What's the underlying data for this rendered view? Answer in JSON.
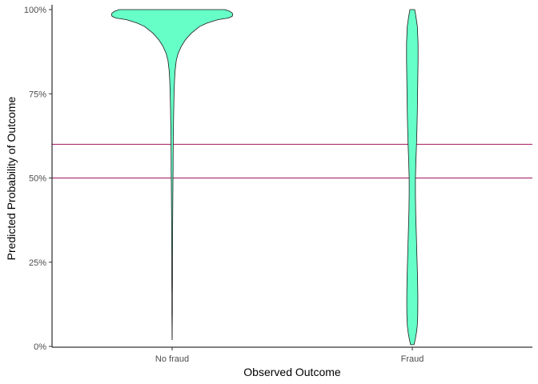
{
  "colors": {
    "violin_fill": "#66FFC8",
    "violin_stroke": "#1a1a1a",
    "reference_line": "#A0175E"
  },
  "chart_data": {
    "type": "violin",
    "title": "",
    "xlabel": "Observed Outcome",
    "ylabel": "Predicted Probability of Outcome",
    "categories": [
      "No fraud",
      "Fraud"
    ],
    "ylim": [
      0,
      1
    ],
    "y_ticks": [
      {
        "value": 0,
        "label": "0%"
      },
      {
        "value": 0.25,
        "label": "25%"
      },
      {
        "value": 0.5,
        "label": "50%"
      },
      {
        "value": 0.75,
        "label": "75%"
      },
      {
        "value": 1,
        "label": "100%"
      }
    ],
    "reference_lines": [
      0.5,
      0.6
    ],
    "grid": false,
    "violins": [
      {
        "category": "No fraud",
        "y_range": [
          0.02,
          1.0
        ],
        "density_profile": [
          [
            1.0,
            0.44
          ],
          [
            0.995,
            0.48
          ],
          [
            0.99,
            0.5
          ],
          [
            0.985,
            0.505
          ],
          [
            0.98,
            0.5
          ],
          [
            0.975,
            0.47
          ],
          [
            0.97,
            0.38
          ],
          [
            0.96,
            0.29
          ],
          [
            0.95,
            0.23
          ],
          [
            0.93,
            0.16
          ],
          [
            0.91,
            0.11
          ],
          [
            0.89,
            0.075
          ],
          [
            0.87,
            0.05
          ],
          [
            0.85,
            0.035
          ],
          [
            0.82,
            0.025
          ],
          [
            0.79,
            0.02
          ],
          [
            0.75,
            0.016
          ],
          [
            0.7,
            0.013
          ],
          [
            0.65,
            0.011
          ],
          [
            0.6,
            0.009
          ],
          [
            0.55,
            0.008
          ],
          [
            0.52,
            0.008
          ],
          [
            0.5,
            0.007
          ],
          [
            0.45,
            0.006
          ],
          [
            0.4,
            0.005
          ],
          [
            0.35,
            0.004
          ],
          [
            0.3,
            0.004
          ],
          [
            0.25,
            0.003
          ],
          [
            0.2,
            0.003
          ],
          [
            0.15,
            0.002
          ],
          [
            0.1,
            0.002
          ],
          [
            0.06,
            0.001
          ],
          [
            0.02,
            0.0005
          ]
        ]
      },
      {
        "category": "Fraud",
        "y_range": [
          0.005,
          1.0
        ],
        "density_profile": [
          [
            1.0,
            0.02
          ],
          [
            0.98,
            0.03
          ],
          [
            0.95,
            0.042
          ],
          [
            0.9,
            0.048
          ],
          [
            0.85,
            0.048
          ],
          [
            0.8,
            0.046
          ],
          [
            0.75,
            0.044
          ],
          [
            0.7,
            0.042
          ],
          [
            0.65,
            0.039
          ],
          [
            0.6,
            0.035
          ],
          [
            0.55,
            0.03
          ],
          [
            0.5,
            0.026
          ],
          [
            0.45,
            0.026
          ],
          [
            0.4,
            0.028
          ],
          [
            0.35,
            0.032
          ],
          [
            0.3,
            0.036
          ],
          [
            0.25,
            0.04
          ],
          [
            0.2,
            0.044
          ],
          [
            0.15,
            0.046
          ],
          [
            0.12,
            0.046
          ],
          [
            0.09,
            0.045
          ],
          [
            0.06,
            0.041
          ],
          [
            0.04,
            0.034
          ],
          [
            0.02,
            0.024
          ],
          [
            0.005,
            0.014
          ]
        ]
      }
    ]
  }
}
